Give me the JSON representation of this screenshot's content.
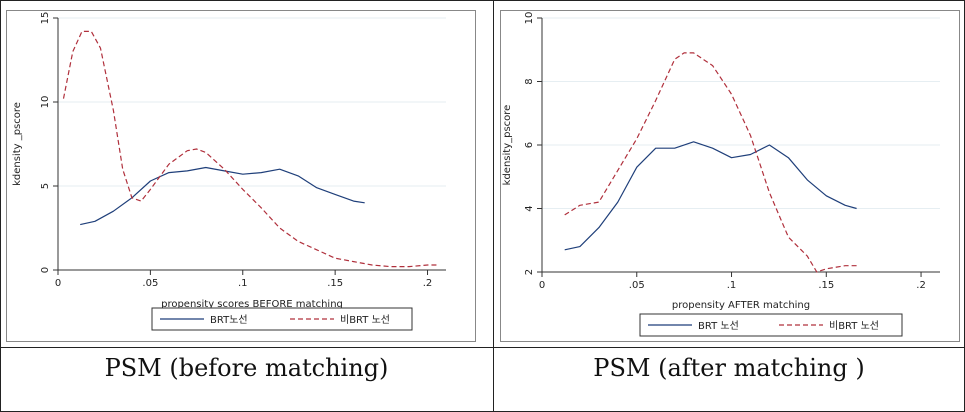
{
  "captions": [
    "PSM (before matching)",
    "PSM (after matching )"
  ],
  "chart_data": [
    {
      "type": "line",
      "title": "",
      "xlabel": "propensity scores BEFORE matching",
      "ylabel": "kdensity _pscore",
      "xlim": [
        0,
        0.21
      ],
      "ylim": [
        0,
        15
      ],
      "x_ticks": [
        0,
        0.05,
        0.1,
        0.15,
        0.2
      ],
      "x_tick_labels": [
        "0",
        ".05",
        ".1",
        ".15",
        ".2"
      ],
      "y_ticks": [
        0,
        5,
        10,
        15
      ],
      "y_tick_labels": [
        "0",
        "5",
        "10",
        "15"
      ],
      "grid": true,
      "legend": "bottom",
      "series": [
        {
          "name": "BRT노선",
          "color": "#1f3f7a",
          "dash": "solid",
          "x": [
            0.012,
            0.02,
            0.03,
            0.04,
            0.05,
            0.06,
            0.07,
            0.08,
            0.09,
            0.1,
            0.11,
            0.12,
            0.13,
            0.14,
            0.15,
            0.16,
            0.166
          ],
          "y": [
            2.7,
            2.9,
            3.5,
            4.3,
            5.3,
            5.8,
            5.9,
            6.1,
            5.9,
            5.7,
            5.8,
            6.0,
            5.6,
            4.9,
            4.5,
            4.1,
            4.0
          ]
        },
        {
          "name": "비BRT 노선",
          "color": "#b0303c",
          "dash": "dashed",
          "x": [
            0.003,
            0.008,
            0.013,
            0.018,
            0.023,
            0.03,
            0.035,
            0.04,
            0.045,
            0.05,
            0.06,
            0.07,
            0.075,
            0.08,
            0.09,
            0.1,
            0.11,
            0.12,
            0.13,
            0.14,
            0.15,
            0.16,
            0.17,
            0.18,
            0.19,
            0.2,
            0.205
          ],
          "y": [
            10.2,
            13.0,
            14.2,
            14.2,
            13.2,
            9.5,
            6.0,
            4.3,
            4.1,
            4.8,
            6.3,
            7.1,
            7.2,
            7.0,
            6.0,
            4.8,
            3.7,
            2.5,
            1.7,
            1.2,
            0.7,
            0.5,
            0.3,
            0.2,
            0.2,
            0.3,
            0.3
          ]
        }
      ]
    },
    {
      "type": "line",
      "title": "",
      "xlabel": "propensity AFTER matching",
      "ylabel": "kdensity_pscore",
      "xlim": [
        0,
        0.21
      ],
      "ylim": [
        2,
        10
      ],
      "x_ticks": [
        0,
        0.05,
        0.1,
        0.15,
        0.2
      ],
      "x_tick_labels": [
        "0",
        ".05",
        ".1",
        ".15",
        ".2"
      ],
      "y_ticks": [
        2,
        4,
        6,
        8,
        10
      ],
      "y_tick_labels": [
        "2",
        "4",
        "6",
        "8",
        "10"
      ],
      "grid": true,
      "legend": "bottom",
      "series": [
        {
          "name": "BRT 노선",
          "color": "#1f3f7a",
          "dash": "solid",
          "x": [
            0.012,
            0.02,
            0.03,
            0.04,
            0.05,
            0.06,
            0.07,
            0.08,
            0.09,
            0.1,
            0.11,
            0.12,
            0.13,
            0.14,
            0.15,
            0.16,
            0.166
          ],
          "y": [
            2.7,
            2.8,
            3.4,
            4.2,
            5.3,
            5.9,
            5.9,
            6.1,
            5.9,
            5.6,
            5.7,
            6.0,
            5.6,
            4.9,
            4.4,
            4.1,
            4.0
          ]
        },
        {
          "name": "비BRT 노선",
          "color": "#b0303c",
          "dash": "dashed",
          "x": [
            0.012,
            0.02,
            0.03,
            0.04,
            0.05,
            0.06,
            0.07,
            0.075,
            0.08,
            0.09,
            0.1,
            0.11,
            0.12,
            0.13,
            0.14,
            0.145,
            0.15,
            0.16,
            0.166
          ],
          "y": [
            3.8,
            4.1,
            4.2,
            5.2,
            6.2,
            7.4,
            8.7,
            8.9,
            8.9,
            8.5,
            7.6,
            6.3,
            4.5,
            3.1,
            2.5,
            2.0,
            2.1,
            2.2,
            2.2
          ]
        }
      ]
    }
  ]
}
